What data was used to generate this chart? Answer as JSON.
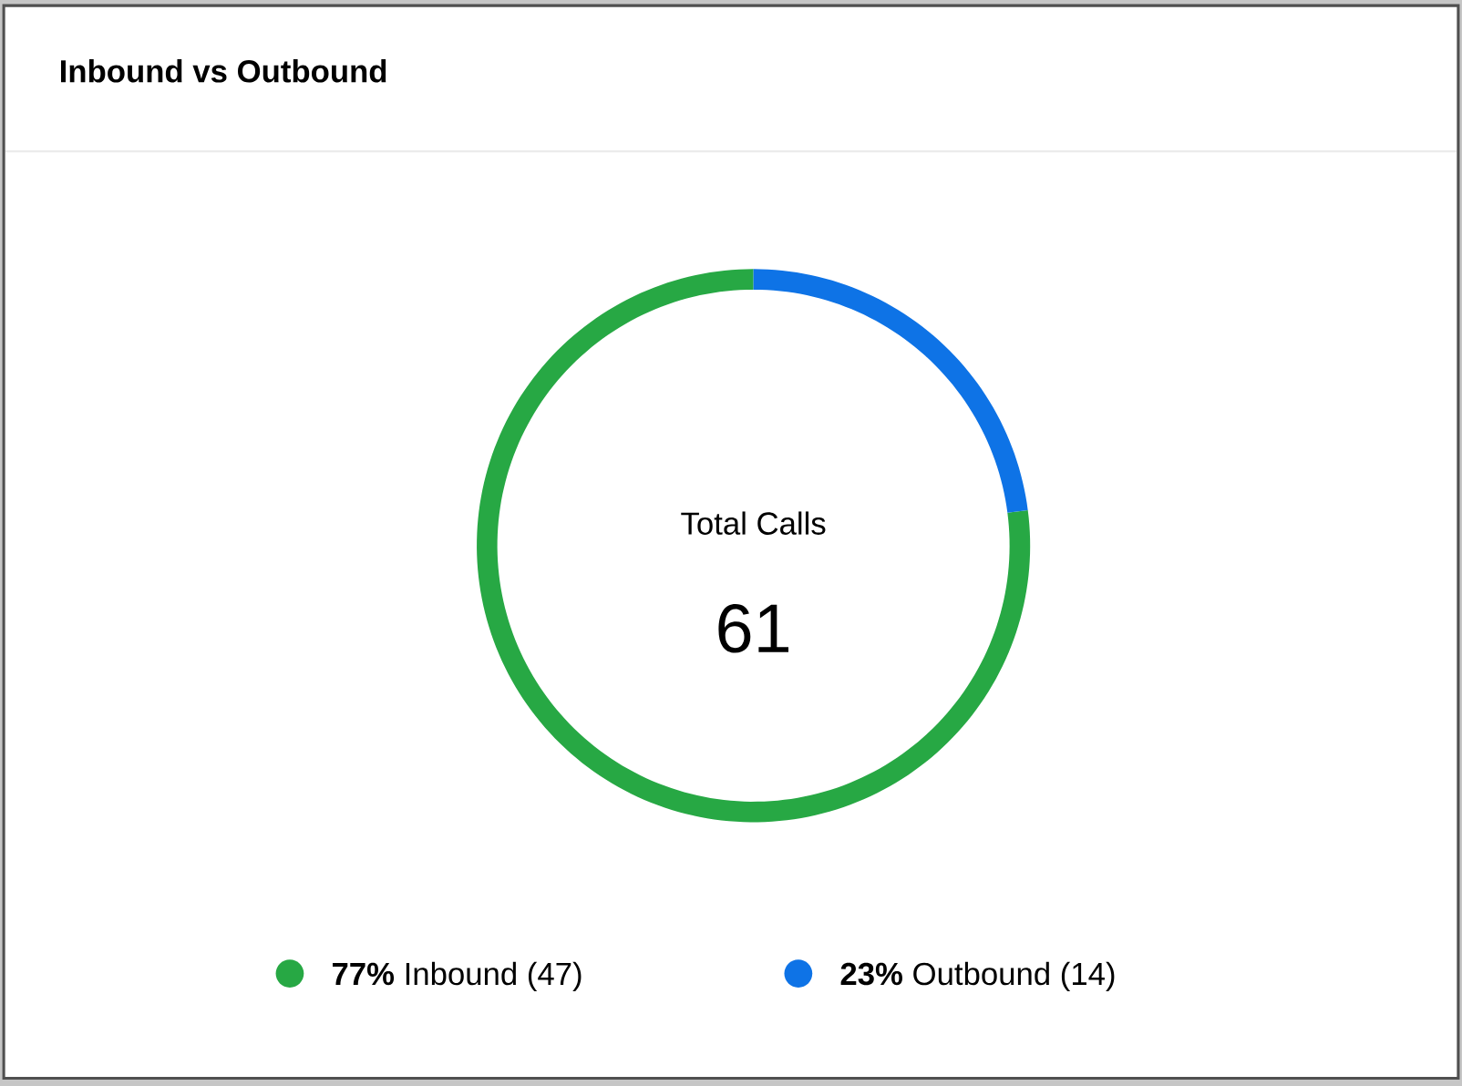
{
  "chart_data": {
    "type": "donut",
    "title": "Inbound vs Outbound",
    "categories": [
      "**77%** Inbound (47)",
      "**23%** Outbound (14)"
    ],
    "values": [
      47,
      14
    ],
    "colors": [
      "#27a844",
      "#0e73e6"
    ],
    "legend": "bottom",
    "annotations": [
      "Total Calls",
      "61"
    ]
  }
}
